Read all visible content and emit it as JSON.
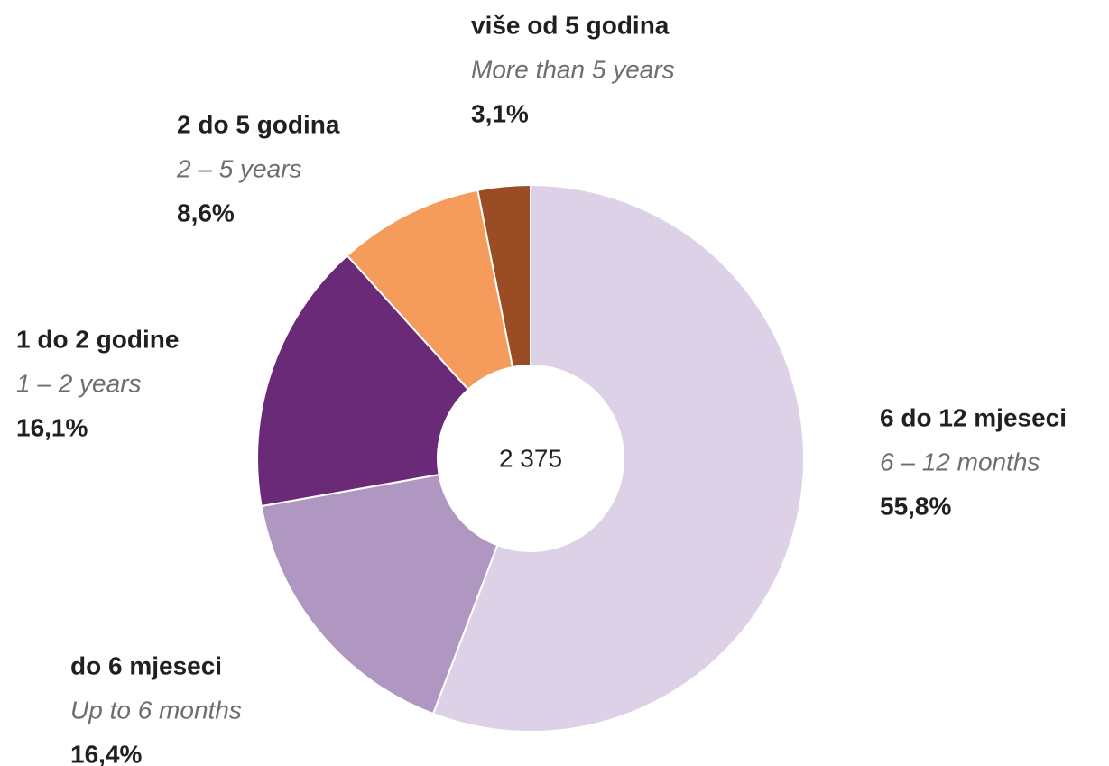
{
  "chart_data": {
    "type": "donut",
    "categories": [
      "6 do 12 mjeseci",
      "do 6 mjeseci",
      "1 do 2 godine",
      "2 do 5 godina",
      "više od 5 godina"
    ],
    "categories_en": [
      "6 – 12 months",
      "Up to 6 months",
      "1 – 2 years",
      "2 – 5 years",
      "More than 5 years"
    ],
    "values": [
      55.8,
      16.4,
      16.1,
      8.6,
      3.1
    ],
    "value_labels": [
      "55,8%",
      "16,4%",
      "16,1%",
      "8,6%",
      "3,1%"
    ],
    "colors": [
      "#ddd1e7",
      "#b097c2",
      "#6a2a78",
      "#f59c5c",
      "#9a4d24"
    ],
    "center_label": "2 375"
  }
}
